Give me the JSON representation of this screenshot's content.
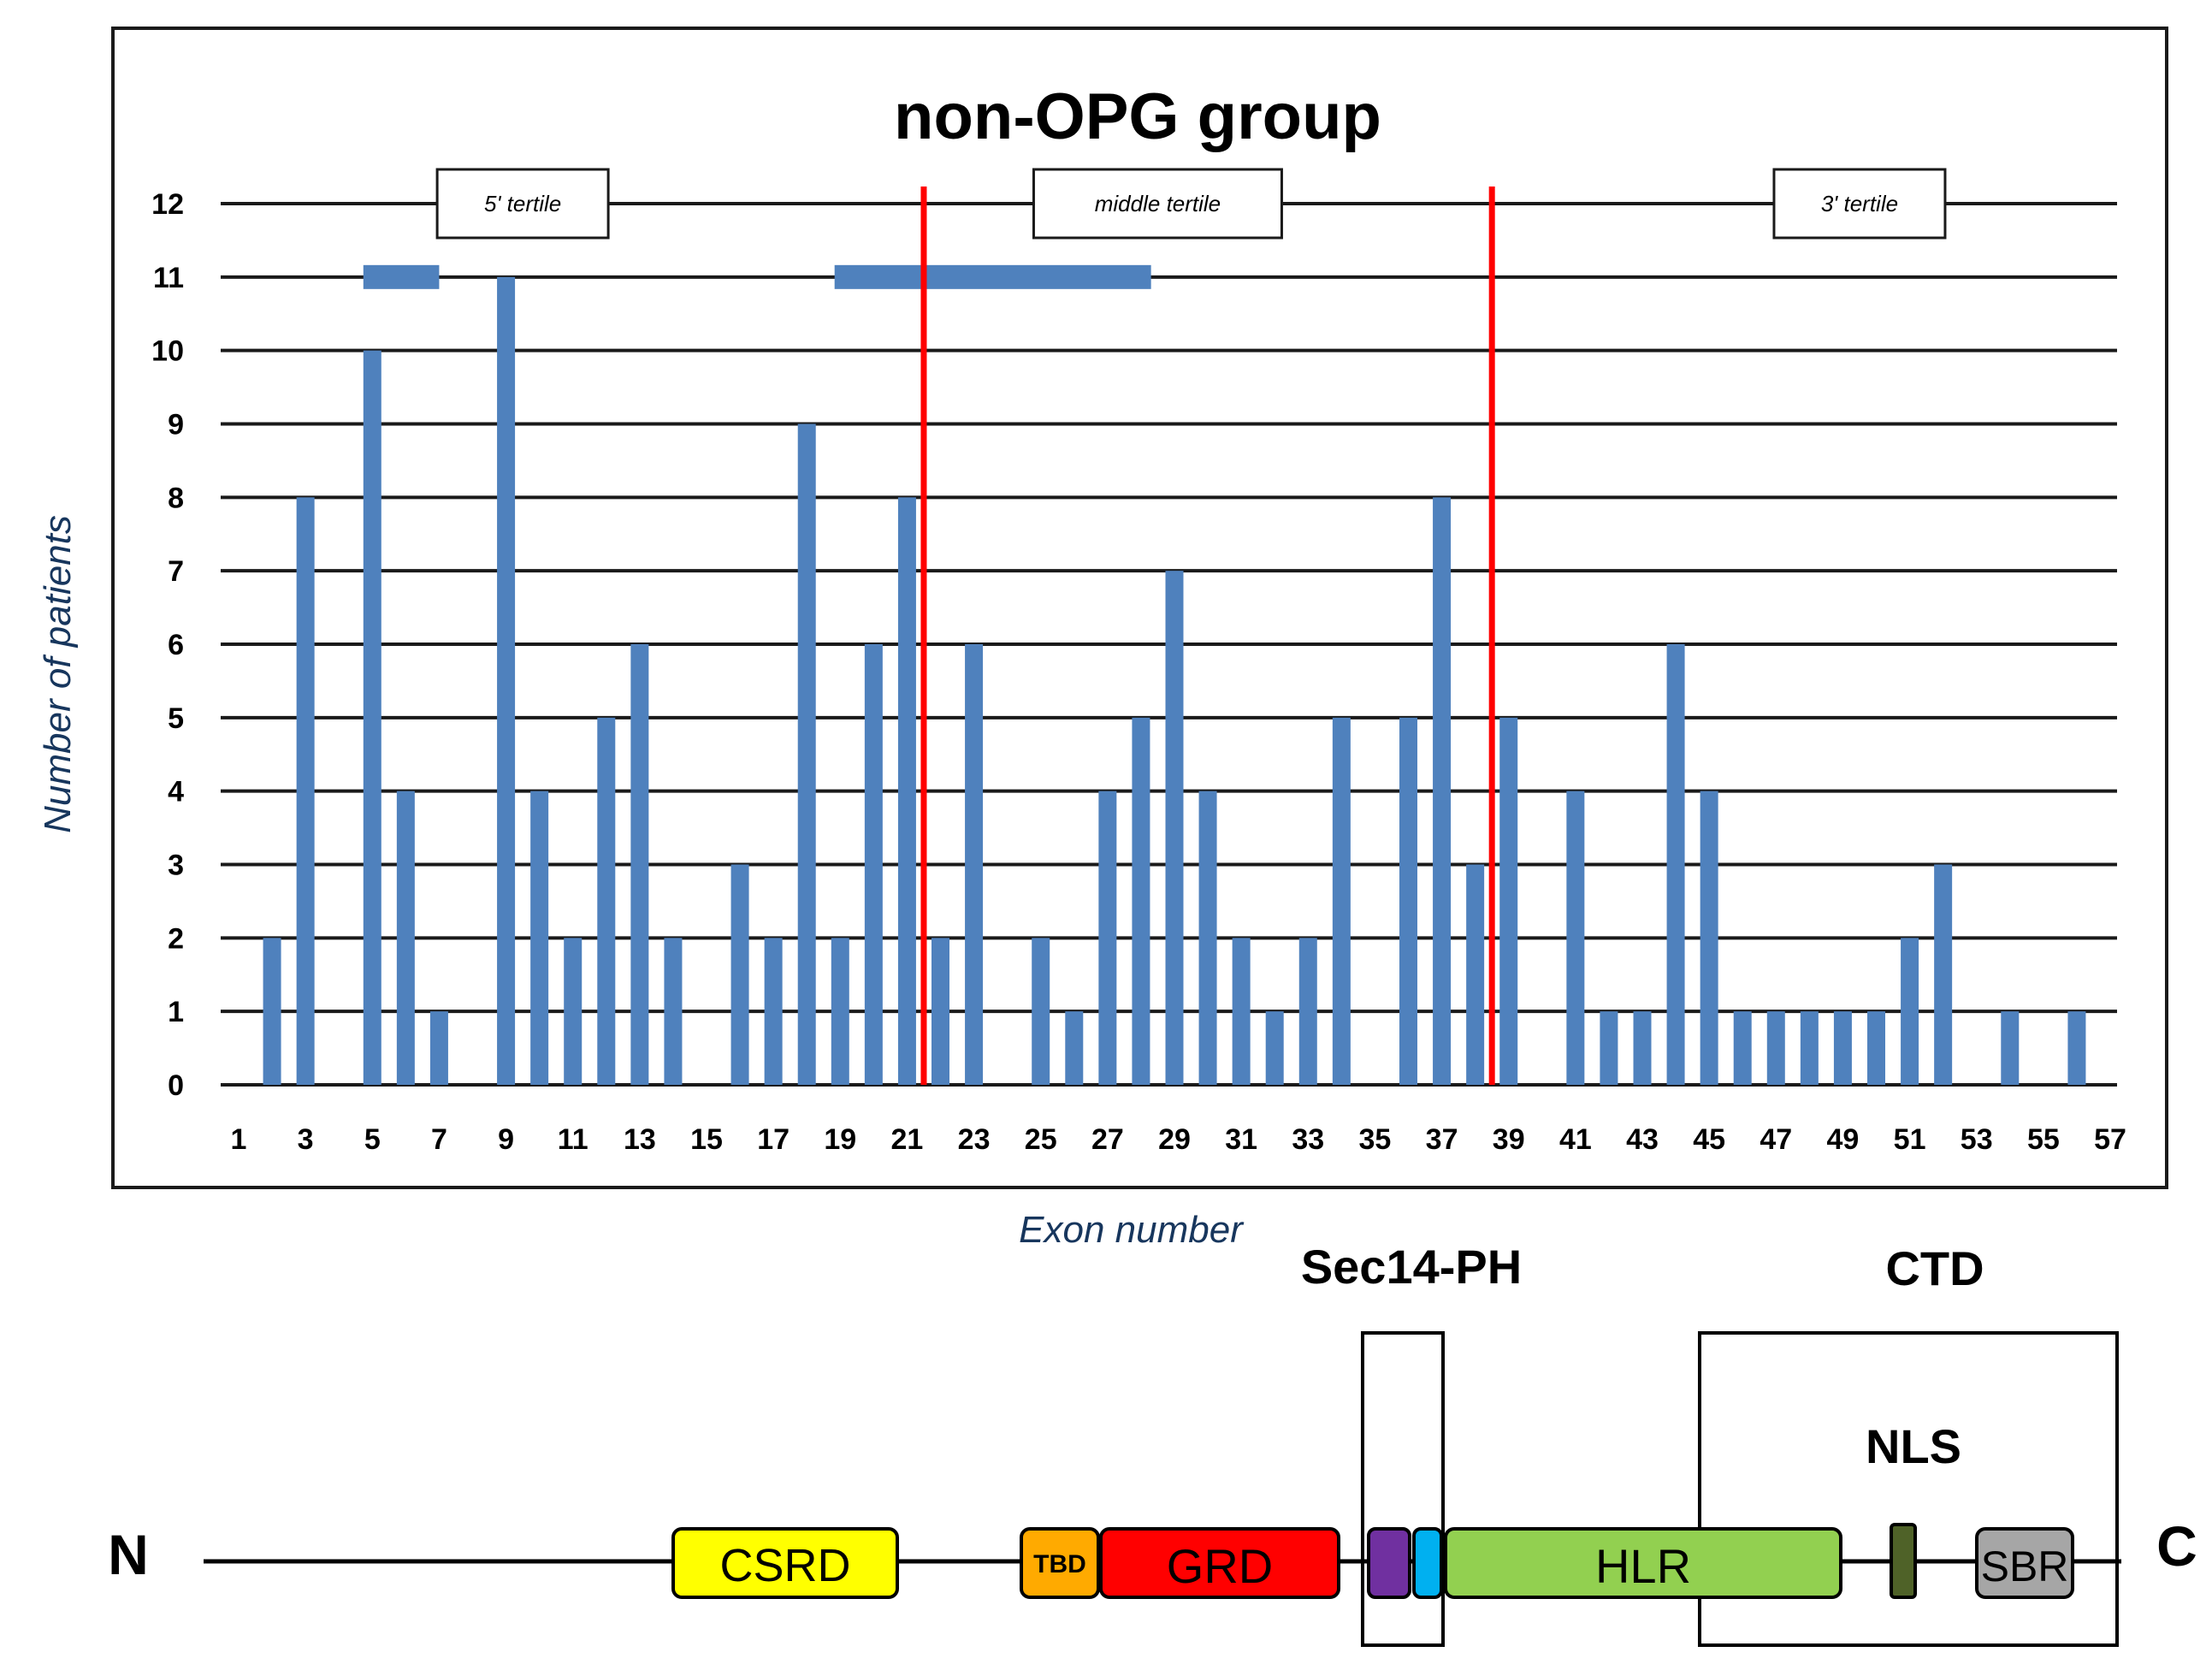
{
  "chart_data": {
    "type": "bar",
    "title": "non-OPG group",
    "xlabel": "Exon number",
    "ylabel": "Number of patients",
    "ylim": [
      0,
      12
    ],
    "xlim": [
      1,
      57
    ],
    "yticks": [
      0,
      1,
      2,
      3,
      4,
      5,
      6,
      7,
      8,
      9,
      10,
      11,
      12
    ],
    "xtick_labels": [
      "1",
      "3",
      "5",
      "7",
      "9",
      "11",
      "13",
      "15",
      "17",
      "19",
      "21",
      "23",
      "25",
      "27",
      "29",
      "31",
      "33",
      "35",
      "37",
      "39",
      "41",
      "43",
      "45",
      "47",
      "49",
      "51",
      "53",
      "55",
      "57"
    ],
    "grid": true,
    "bar_color": "#4f81bd",
    "categories": [
      1,
      2,
      3,
      4,
      5,
      6,
      7,
      8,
      9,
      10,
      11,
      12,
      13,
      14,
      15,
      16,
      17,
      18,
      19,
      20,
      21,
      22,
      23,
      24,
      25,
      26,
      27,
      28,
      29,
      30,
      31,
      32,
      33,
      34,
      35,
      36,
      37,
      38,
      39,
      40,
      41,
      42,
      43,
      44,
      45,
      46,
      47,
      48,
      49,
      50,
      51,
      52,
      53,
      54,
      55,
      56,
      57
    ],
    "values": [
      0,
      2,
      8,
      0,
      10,
      4,
      1,
      0,
      11,
      4,
      2,
      5,
      6,
      2,
      0,
      3,
      2,
      9,
      2,
      6,
      8,
      2,
      6,
      0,
      2,
      1,
      4,
      5,
      7,
      4,
      2,
      1,
      2,
      5,
      0,
      5,
      8,
      3,
      5,
      0,
      4,
      1,
      1,
      6,
      4,
      1,
      1,
      1,
      1,
      1,
      2,
      3,
      0,
      1,
      0,
      1,
      0
    ],
    "tertile_boundaries": [
      21.5,
      38.5
    ],
    "tertile_line_color": "#ff0000",
    "tertile_labels": [
      {
        "text": "5' tertile",
        "center_exon": 9.5
      },
      {
        "text": "middle tertile",
        "center_exon": 28.5
      },
      {
        "text": "3' tertile",
        "center_exon": 49.5
      }
    ],
    "hotspots": [
      {
        "start_exon": 5,
        "end_exon": 7,
        "level": 11
      },
      {
        "start_exon": 19.1,
        "end_exon": 28.3,
        "level": 11
      }
    ]
  },
  "protein_diagram": {
    "n_label": "N",
    "c_label": "C",
    "regions": [
      {
        "label": "Sec14-PH"
      },
      {
        "label": "CTD"
      },
      {
        "label": "NLS"
      }
    ],
    "domains": [
      {
        "label": "CSRD",
        "color": "#ffff00"
      },
      {
        "label": "TBD",
        "color": "#ffaa00"
      },
      {
        "label": "GRD",
        "color": "#ff0000"
      },
      {
        "label": "",
        "color": "#7030a0"
      },
      {
        "label": "",
        "color": "#00b0f0"
      },
      {
        "label": "HLR",
        "color": "#92d050"
      },
      {
        "label": "",
        "color": "#4f6228"
      },
      {
        "label": "SBR",
        "color": "#a6a6a6"
      }
    ]
  }
}
